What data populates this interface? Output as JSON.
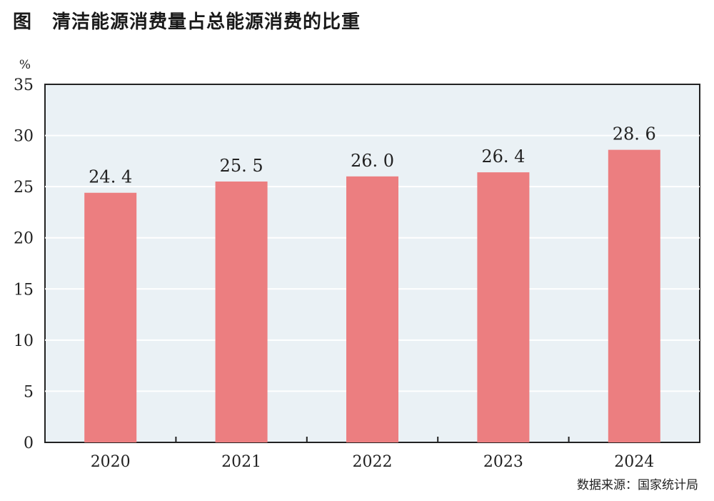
{
  "title": {
    "figure_label": "图",
    "text": "清洁能源消费量占总能源消费的比重"
  },
  "source": "数据来源：国家统计局",
  "colors": {
    "bar": "#ec7e80",
    "plot_background": "#eaf1f5",
    "gridline": "#ffffff",
    "axis": "#222222"
  },
  "chart_data": {
    "type": "bar",
    "title": "清洁能源消费量占总能源消费的比重",
    "ylabel": "%",
    "xlabel": "",
    "ylim": [
      0,
      35
    ],
    "yticks": [
      0,
      5,
      10,
      15,
      20,
      25,
      30,
      35
    ],
    "grid": true,
    "categories": [
      "2020",
      "2021",
      "2022",
      "2023",
      "2024"
    ],
    "values": [
      24.4,
      25.5,
      26.0,
      26.4,
      28.6
    ],
    "value_labels": [
      "24. 4",
      "25. 5",
      "26. 0",
      "26. 4",
      "28. 6"
    ]
  }
}
